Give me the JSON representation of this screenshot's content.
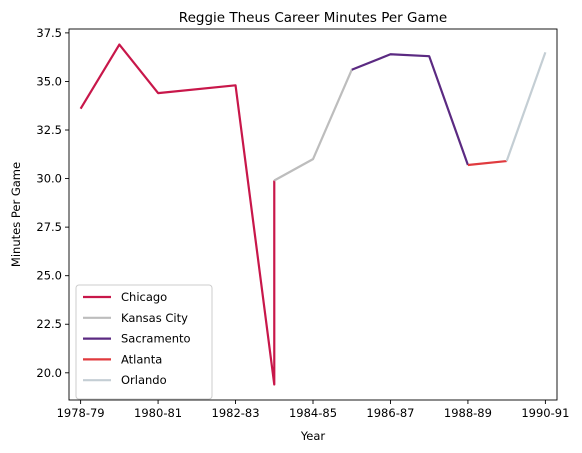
{
  "chart_data": {
    "type": "line",
    "title": "Reggie Theus Career Minutes Per Game",
    "xlabel": "Year",
    "ylabel": "Minutes Per Game",
    "x_ticks": [
      "1978-79",
      "1980-81",
      "1982-83",
      "1984-85",
      "1986-87",
      "1988-89",
      "1990-91"
    ],
    "xlim": [
      -0.3,
      12.3
    ],
    "ylim": [
      18.6,
      37.7
    ],
    "y_ticks": [
      20.0,
      22.5,
      25.0,
      27.5,
      30.0,
      32.5,
      35.0,
      37.5
    ],
    "legend_position": "lower-left",
    "grid": false,
    "series": [
      {
        "name": "Chicago",
        "color": "#c8174a",
        "points": [
          [
            0,
            33.6
          ],
          [
            1,
            36.9
          ],
          [
            2,
            34.4
          ],
          [
            4,
            34.8
          ],
          [
            5,
            19.4
          ],
          [
            5,
            29.9
          ]
        ]
      },
      {
        "name": "Kansas City",
        "color": "#bdbdbd",
        "points": [
          [
            5,
            29.9
          ],
          [
            6,
            31.0
          ],
          [
            7,
            35.6
          ]
        ]
      },
      {
        "name": "Sacramento",
        "color": "#5b2a82",
        "points": [
          [
            7,
            35.6
          ],
          [
            8,
            36.4
          ],
          [
            9,
            36.3
          ],
          [
            10,
            30.7
          ]
        ]
      },
      {
        "name": "Atlanta",
        "color": "#e03a3e",
        "points": [
          [
            10,
            30.7
          ],
          [
            11,
            30.9
          ]
        ]
      },
      {
        "name": "Orlando",
        "color": "#c4ced4",
        "points": [
          [
            11,
            30.9
          ],
          [
            12,
            36.5
          ]
        ]
      }
    ]
  }
}
